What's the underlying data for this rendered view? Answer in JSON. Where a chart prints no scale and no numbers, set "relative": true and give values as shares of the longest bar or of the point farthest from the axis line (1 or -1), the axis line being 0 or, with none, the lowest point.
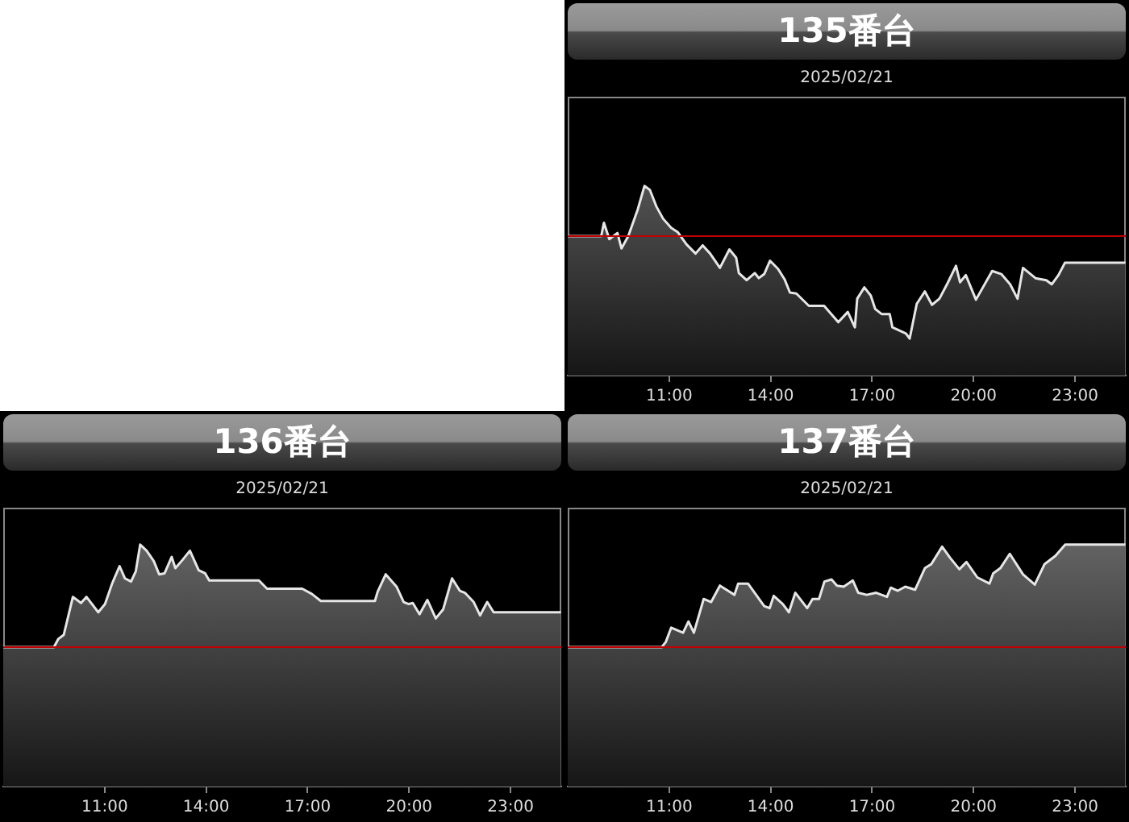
{
  "chart_data": [
    {
      "type": "area",
      "title": "135番台",
      "subtitle": "2025/02/21",
      "relative": true,
      "xlim": [
        8,
        24.5
      ],
      "xticks": [
        {
          "value": 11,
          "label": "11:00"
        },
        {
          "value": 14,
          "label": "14:00"
        },
        {
          "value": 17,
          "label": "17:00"
        },
        {
          "value": 20,
          "label": "20:00"
        },
        {
          "value": 23,
          "label": "23:00"
        }
      ],
      "grid": false,
      "legend": false,
      "tick_labels": "x",
      "ref_lines": [
        {
          "axis": "y",
          "value": 0,
          "color": "#c00000"
        }
      ],
      "x": [
        8.0,
        8.99,
        9.07,
        9.23,
        9.47,
        9.59,
        9.79,
        10.07,
        10.27,
        10.43,
        10.62,
        10.82,
        11.06,
        11.25,
        11.51,
        11.78,
        11.99,
        12.21,
        12.5,
        12.78,
        12.98,
        13.06,
        13.29,
        13.53,
        13.65,
        13.81,
        13.98,
        14.22,
        14.41,
        14.57,
        14.76,
        15.13,
        15.58,
        16.0,
        16.28,
        16.49,
        16.56,
        16.77,
        16.96,
        17.09,
        17.28,
        17.52,
        17.6,
        18.0,
        18.11,
        18.32,
        18.56,
        18.77,
        18.99,
        19.23,
        19.48,
        19.6,
        19.77,
        20.07,
        20.55,
        20.82,
        21.08,
        21.3,
        21.46,
        21.83,
        22.15,
        22.31,
        22.51,
        22.7,
        24.49
      ],
      "series": [
        {
          "color": "#e6e6e6",
          "values": [
            0,
            0,
            0.13,
            -0.03,
            0.03,
            -0.12,
            0,
            0.26,
            0.49,
            0.45,
            0.29,
            0.17,
            0.08,
            0.04,
            -0.08,
            -0.17,
            -0.09,
            -0.17,
            -0.31,
            -0.13,
            -0.21,
            -0.36,
            -0.43,
            -0.36,
            -0.41,
            -0.37,
            -0.24,
            -0.32,
            -0.42,
            -0.55,
            -0.56,
            -0.68,
            -0.68,
            -0.84,
            -0.74,
            -0.89,
            -0.61,
            -0.5,
            -0.58,
            -0.71,
            -0.76,
            -0.76,
            -0.89,
            -0.95,
            -1.0,
            -0.66,
            -0.54,
            -0.67,
            -0.61,
            -0.46,
            -0.29,
            -0.45,
            -0.38,
            -0.62,
            -0.34,
            -0.37,
            -0.47,
            -0.61,
            -0.31,
            -0.41,
            -0.43,
            -0.47,
            -0.38,
            -0.26,
            -0.26
          ]
        }
      ]
    },
    {
      "type": "area",
      "title": "136番台",
      "subtitle": "2025/02/21",
      "relative": true,
      "xlim": [
        8,
        24.5
      ],
      "xticks": [
        {
          "value": 11,
          "label": "11:00"
        },
        {
          "value": 14,
          "label": "14:00"
        },
        {
          "value": 17,
          "label": "17:00"
        },
        {
          "value": 20,
          "label": "20:00"
        },
        {
          "value": 23,
          "label": "23:00"
        }
      ],
      "grid": false,
      "legend": false,
      "tick_labels": "x",
      "ref_lines": [
        {
          "axis": "y",
          "value": 0,
          "color": "#c00000"
        }
      ],
      "x": [
        8,
        9.5,
        9.63,
        9.79,
        10.06,
        10.3,
        10.46,
        10.81,
        11.01,
        11.22,
        11.44,
        11.6,
        11.78,
        11.92,
        12.05,
        12.24,
        12.45,
        12.61,
        12.77,
        12.98,
        13.09,
        13.3,
        13.52,
        13.78,
        13.97,
        14.09,
        15.56,
        15.8,
        16.84,
        17.12,
        17.39,
        18.99,
        19.07,
        19.31,
        19.63,
        19.84,
        19.99,
        20.11,
        20.31,
        20.54,
        20.79,
        21.01,
        21.27,
        21.5,
        21.65,
        21.91,
        22.1,
        22.31,
        22.5,
        24.49
      ],
      "series": [
        {
          "color": "#e6e6e6",
          "values": [
            0,
            0,
            0.08,
            0.12,
            0.49,
            0.43,
            0.49,
            0.34,
            0.42,
            0.62,
            0.79,
            0.67,
            0.64,
            0.74,
            1.0,
            0.94,
            0.84,
            0.71,
            0.72,
            0.88,
            0.77,
            0.85,
            0.94,
            0.75,
            0.72,
            0.65,
            0.65,
            0.57,
            0.57,
            0.52,
            0.45,
            0.45,
            0.54,
            0.71,
            0.59,
            0.44,
            0.42,
            0.43,
            0.32,
            0.46,
            0.28,
            0.37,
            0.67,
            0.55,
            0.53,
            0.44,
            0.31,
            0.44,
            0.34,
            0.34
          ]
        }
      ]
    },
    {
      "type": "area",
      "title": "137番台",
      "subtitle": "2025/02/21",
      "relative": true,
      "xlim": [
        8,
        24.5
      ],
      "xticks": [
        {
          "value": 11,
          "label": "11:00"
        },
        {
          "value": 14,
          "label": "14:00"
        },
        {
          "value": 17,
          "label": "17:00"
        },
        {
          "value": 20,
          "label": "20:00"
        },
        {
          "value": 23,
          "label": "23:00"
        }
      ],
      "grid": false,
      "legend": false,
      "tick_labels": "x",
      "ref_lines": [
        {
          "axis": "y",
          "value": 0,
          "color": "#c00000"
        }
      ],
      "x": [
        8,
        10.78,
        10.9,
        11.06,
        11.41,
        11.57,
        11.73,
        12.02,
        12.24,
        12.5,
        12.69,
        12.93,
        13.04,
        13.33,
        13.57,
        13.81,
        13.97,
        14.09,
        14.36,
        14.54,
        14.73,
        15.08,
        15.24,
        15.43,
        15.59,
        15.8,
        15.96,
        16.16,
        16.43,
        16.59,
        16.84,
        17.12,
        17.44,
        17.55,
        17.76,
        17.98,
        18.27,
        18.56,
        18.75,
        19.07,
        19.31,
        19.58,
        19.79,
        20.11,
        20.47,
        20.58,
        20.79,
        21.07,
        21.46,
        21.81,
        22.1,
        22.42,
        22.71,
        24.49
      ],
      "series": [
        {
          "color": "#e6e6e6",
          "values": [
            0,
            0,
            0.05,
            0.19,
            0.14,
            0.25,
            0.14,
            0.47,
            0.44,
            0.6,
            0.56,
            0.51,
            0.62,
            0.62,
            0.51,
            0.4,
            0.38,
            0.5,
            0.42,
            0.34,
            0.53,
            0.38,
            0.47,
            0.47,
            0.64,
            0.66,
            0.6,
            0.59,
            0.65,
            0.53,
            0.51,
            0.53,
            0.49,
            0.58,
            0.55,
            0.59,
            0.56,
            0.77,
            0.81,
            0.98,
            0.87,
            0.76,
            0.83,
            0.68,
            0.62,
            0.72,
            0.77,
            0.91,
            0.71,
            0.61,
            0.81,
            0.89,
            1.0,
            1.0
          ]
        }
      ]
    }
  ]
}
